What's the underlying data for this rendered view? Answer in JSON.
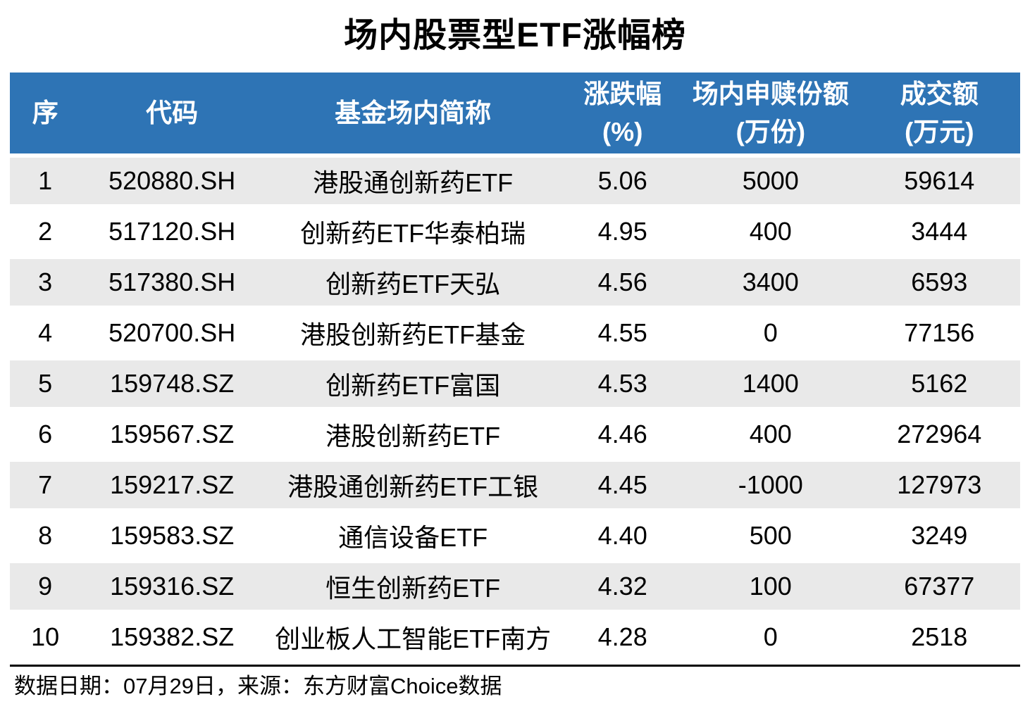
{
  "title": "场内股票型ETF涨幅榜",
  "table": {
    "columns": [
      {
        "line1": "序",
        "line2": ""
      },
      {
        "line1": "代码",
        "line2": ""
      },
      {
        "line1": "基金场内简称",
        "line2": ""
      },
      {
        "line1": "涨跌幅",
        "line2": "(%)"
      },
      {
        "line1": "场内申赎份额",
        "line2": "(万份)"
      },
      {
        "line1": "成交额",
        "line2": "(万元)"
      }
    ],
    "rows": [
      {
        "seq": "1",
        "code": "520880.SH",
        "name": "港股通创新药ETF",
        "change": "5.06",
        "shares": "5000",
        "turnover": "59614"
      },
      {
        "seq": "2",
        "code": "517120.SH",
        "name": "创新药ETF华泰柏瑞",
        "change": "4.95",
        "shares": "400",
        "turnover": "3444"
      },
      {
        "seq": "3",
        "code": "517380.SH",
        "name": "创新药ETF天弘",
        "change": "4.56",
        "shares": "3400",
        "turnover": "6593"
      },
      {
        "seq": "4",
        "code": "520700.SH",
        "name": "港股创新药ETF基金",
        "change": "4.55",
        "shares": "0",
        "turnover": "77156"
      },
      {
        "seq": "5",
        "code": "159748.SZ",
        "name": "创新药ETF富国",
        "change": "4.53",
        "shares": "1400",
        "turnover": "5162"
      },
      {
        "seq": "6",
        "code": "159567.SZ",
        "name": "港股创新药ETF",
        "change": "4.46",
        "shares": "400",
        "turnover": "272964"
      },
      {
        "seq": "7",
        "code": "159217.SZ",
        "name": "港股通创新药ETF工银",
        "change": "4.45",
        "shares": "-1000",
        "turnover": "127973"
      },
      {
        "seq": "8",
        "code": "159583.SZ",
        "name": "通信设备ETF",
        "change": "4.40",
        "shares": "500",
        "turnover": "3249"
      },
      {
        "seq": "9",
        "code": "159316.SZ",
        "name": "恒生创新药ETF",
        "change": "4.32",
        "shares": "100",
        "turnover": "67377"
      },
      {
        "seq": "10",
        "code": "159382.SZ",
        "name": "创业板人工智能ETF南方",
        "change": "4.28",
        "shares": "0",
        "turnover": "2518"
      }
    ]
  },
  "footer": {
    "text": "数据日期：07月29日，来源：东方财富Choice数据"
  },
  "colors": {
    "header_bg": "#2E74B5",
    "header_text": "#FFFFFF",
    "row_alt_bg": "#E9E9E9",
    "rule_line": "#000000"
  },
  "chart_data": {
    "type": "table",
    "title": "场内股票型ETF涨幅榜",
    "columns": [
      "序",
      "代码",
      "基金场内简称",
      "涨跌幅(%)",
      "场内申赎份额(万份)",
      "成交额(万元)"
    ],
    "rows": [
      [
        1,
        "520880.SH",
        "港股通创新药ETF",
        5.06,
        5000,
        59614
      ],
      [
        2,
        "517120.SH",
        "创新药ETF华泰柏瑞",
        4.95,
        400,
        3444
      ],
      [
        3,
        "517380.SH",
        "创新药ETF天弘",
        4.56,
        3400,
        6593
      ],
      [
        4,
        "520700.SH",
        "港股创新药ETF基金",
        4.55,
        0,
        77156
      ],
      [
        5,
        "159748.SZ",
        "创新药ETF富国",
        4.53,
        1400,
        5162
      ],
      [
        6,
        "159567.SZ",
        "港股创新药ETF",
        4.46,
        400,
        272964
      ],
      [
        7,
        "159217.SZ",
        "港股通创新药ETF工银",
        4.45,
        -1000,
        127973
      ],
      [
        8,
        "159583.SZ",
        "通信设备ETF",
        4.4,
        500,
        3249
      ],
      [
        9,
        "159316.SZ",
        "恒生创新药ETF",
        4.32,
        100,
        67377
      ],
      [
        10,
        "159382.SZ",
        "创业板人工智能ETF南方",
        4.28,
        0,
        2518
      ]
    ],
    "source_note": "数据日期：07月29日，来源：东方财富Choice数据"
  }
}
